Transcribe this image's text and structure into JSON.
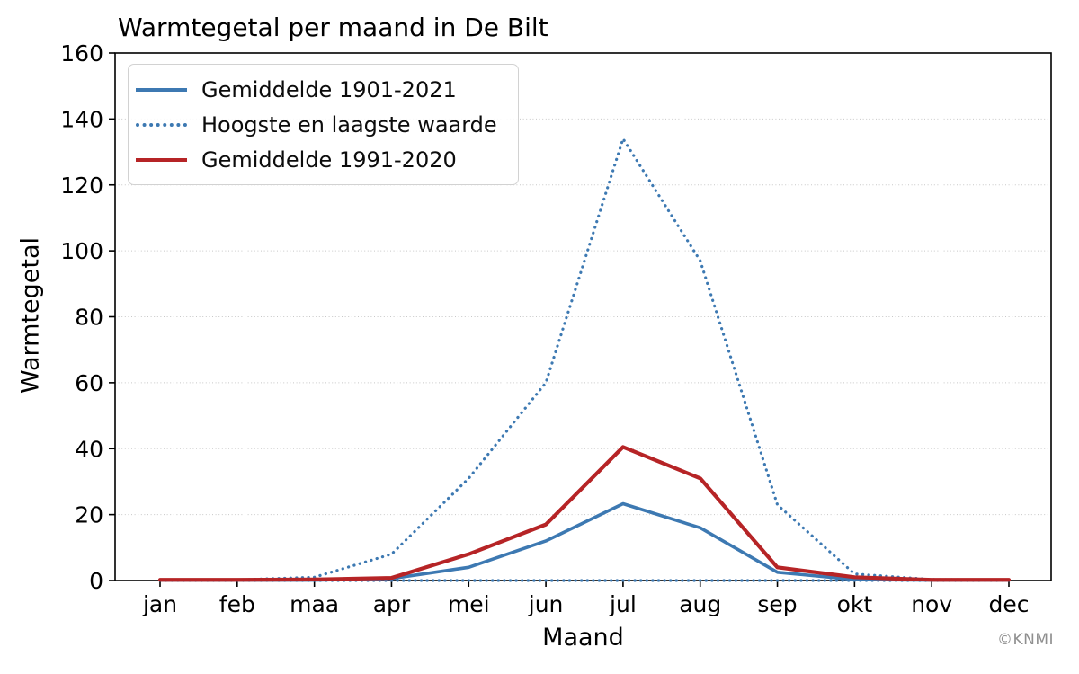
{
  "chart_data": {
    "type": "line",
    "title": "Warmtegetal per maand in De Bilt",
    "xlabel": "Maand",
    "ylabel": "Warmtegetal",
    "credit": "©KNMI",
    "categories": [
      "jan",
      "feb",
      "maa",
      "apr",
      "mei",
      "jun",
      "jul",
      "aug",
      "sep",
      "okt",
      "nov",
      "dec"
    ],
    "ylim": [
      0,
      160
    ],
    "yticks": [
      0,
      20,
      40,
      60,
      80,
      100,
      120,
      140,
      160
    ],
    "grid": "horizontal-dotted",
    "legend_position": "upper-left",
    "series": [
      {
        "name": "Gemiddelde 1901-2021",
        "style": "solid",
        "color": "#3d79b2",
        "values": [
          0.1,
          0.1,
          0.1,
          0.6,
          4,
          12,
          23.3,
          16,
          2.5,
          0.3,
          0.1,
          0.1
        ]
      },
      {
        "name": "Hoogste en laagste waarde",
        "style": "dotted",
        "color": "#3d79b2",
        "values_max": [
          0.2,
          0.2,
          1,
          8,
          31,
          60,
          134,
          97,
          23,
          2,
          0.3,
          0.2
        ],
        "values_min": [
          0,
          0,
          0,
          0,
          0,
          0,
          0,
          0,
          0,
          0,
          0,
          0
        ]
      },
      {
        "name": "Gemiddelde 1991-2020",
        "style": "solid",
        "color": "#b62426",
        "values": [
          0.2,
          0.2,
          0.3,
          0.8,
          8,
          17,
          40.5,
          31,
          4,
          1,
          0.2,
          0.2
        ]
      }
    ],
    "colors": {
      "gridline": "#c8c8c8",
      "axis": "#000000",
      "credit_text": "#8f8f8f"
    }
  }
}
